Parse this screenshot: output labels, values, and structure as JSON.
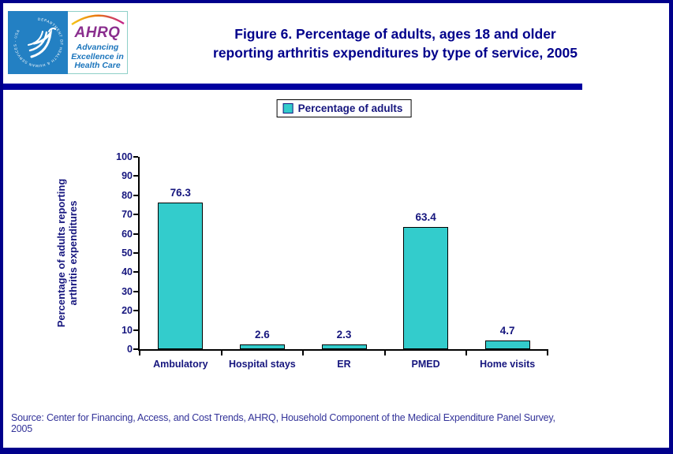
{
  "page": {
    "background": "#FFFFFF",
    "border_color": "#00008B"
  },
  "header": {
    "logo": {
      "ring_text": "DEPARTMENT OF HEALTH & HUMAN SERVICES - USA",
      "ahrq_acronym": "AHRQ",
      "tagline_lines": [
        "Advancing",
        "Excellence in",
        "Health Care"
      ],
      "hhs_blue": "#2380C3",
      "ahrq_purple": "#8A2E8E",
      "tagline_blue": "#1B75BC"
    },
    "title_lines": [
      "Figure 6. Percentage of adults, ages 18 and older",
      "reporting arthritis expenditures by type of service, 2005"
    ],
    "title_color": "#00008B",
    "divider_color": "#0000A0"
  },
  "chart_data": {
    "type": "bar",
    "title": "Figure 6. Percentage of adults, ages 18 and older reporting arthritis expenditures by type of service, 2005",
    "legend_label": "Percentage of adults",
    "legend_position": "top-center",
    "categories": [
      "Ambulatory",
      "Hospital stays",
      "ER",
      "PMED",
      "Home visits"
    ],
    "values": [
      76.3,
      2.6,
      2.3,
      63.4,
      4.7
    ],
    "xlabel": "",
    "ylabel_lines": [
      "Percentage of adults reporting",
      "arthritis expenditures"
    ],
    "ylim": [
      0,
      100
    ],
    "yticks": [
      0,
      10,
      20,
      30,
      40,
      50,
      60,
      70,
      80,
      90,
      100
    ],
    "grid": false,
    "bar_color": "#33CCCC",
    "bar_border_color": "#000000",
    "text_color": "#16167E"
  },
  "footer": {
    "source_lines": [
      "Source: Center for Financing, Access, and Cost Trends, AHRQ, Household Component of the Medical Expenditure Panel Survey,",
      "2005"
    ]
  }
}
